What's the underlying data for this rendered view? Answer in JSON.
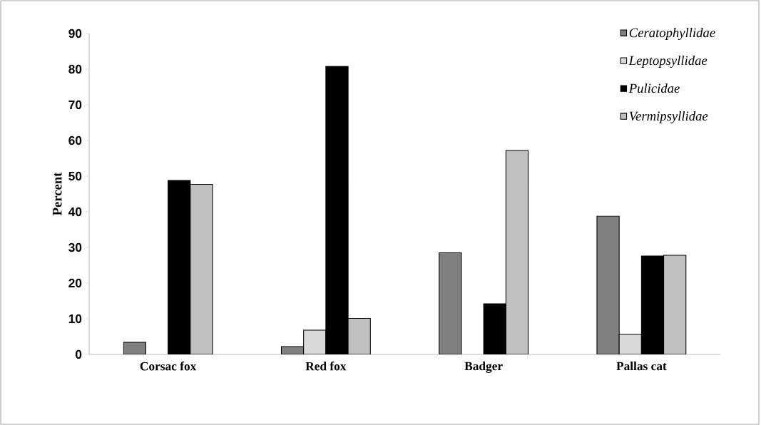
{
  "chart_data": {
    "type": "bar",
    "ylabel": "Percent",
    "categories": [
      "Corsac fox",
      "Red fox",
      "Badger",
      "Pallas cat"
    ],
    "series": [
      {
        "name": "Ceratophyllidae",
        "color": "#808080",
        "values": [
          3.4,
          2.2,
          28.5,
          38.8
        ]
      },
      {
        "name": "Leptopsyllidae",
        "color": "#d9d9d9",
        "values": [
          null,
          6.8,
          null,
          5.6
        ]
      },
      {
        "name": "Pulicidae",
        "color": "#000000",
        "values": [
          48.8,
          80.8,
          14.2,
          27.6
        ]
      },
      {
        "name": "Vermipsyllidae",
        "color": "#c0c0c0",
        "values": [
          47.7,
          10.1,
          57.2,
          27.8
        ]
      }
    ],
    "ylim": [
      0,
      90
    ],
    "yticks": [
      0,
      10,
      20,
      30,
      40,
      50,
      60,
      70,
      80,
      90
    ],
    "grid": false,
    "legend": "top right"
  }
}
